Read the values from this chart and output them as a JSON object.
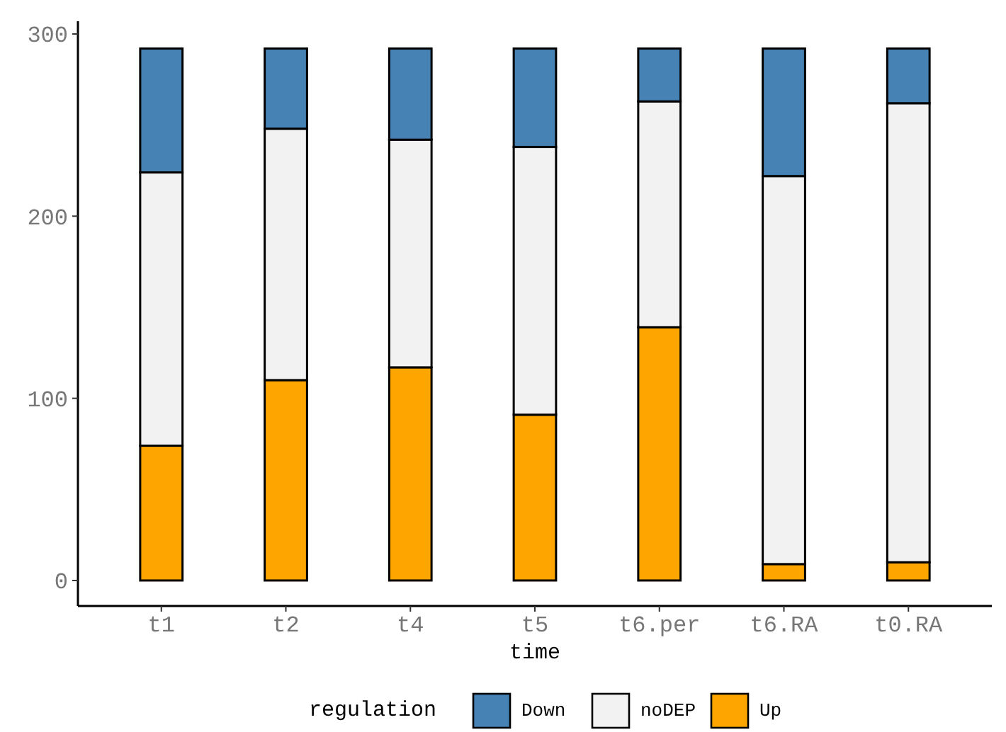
{
  "chart_data": {
    "type": "bar",
    "stacked": true,
    "xlabel": "time",
    "legend_title": "regulation",
    "legend": "bottom",
    "grid": false,
    "categories": [
      "t1",
      "t2",
      "t4",
      "t5",
      "t6.per",
      "t6.RA",
      "t0.RA"
    ],
    "series": [
      {
        "name": "Up",
        "color": "#ffa500",
        "values": [
          74,
          110,
          117,
          91,
          139,
          9,
          10
        ]
      },
      {
        "name": "noDEP",
        "color": "#f2f2f2",
        "values": [
          150,
          138,
          125,
          147,
          124,
          213,
          252
        ]
      },
      {
        "name": "Down",
        "color": "#4682b4",
        "values": [
          68,
          44,
          50,
          54,
          29,
          70,
          30
        ]
      }
    ],
    "ylim": [
      -14,
      307
    ],
    "yticks": [
      0,
      100,
      200,
      300
    ]
  }
}
